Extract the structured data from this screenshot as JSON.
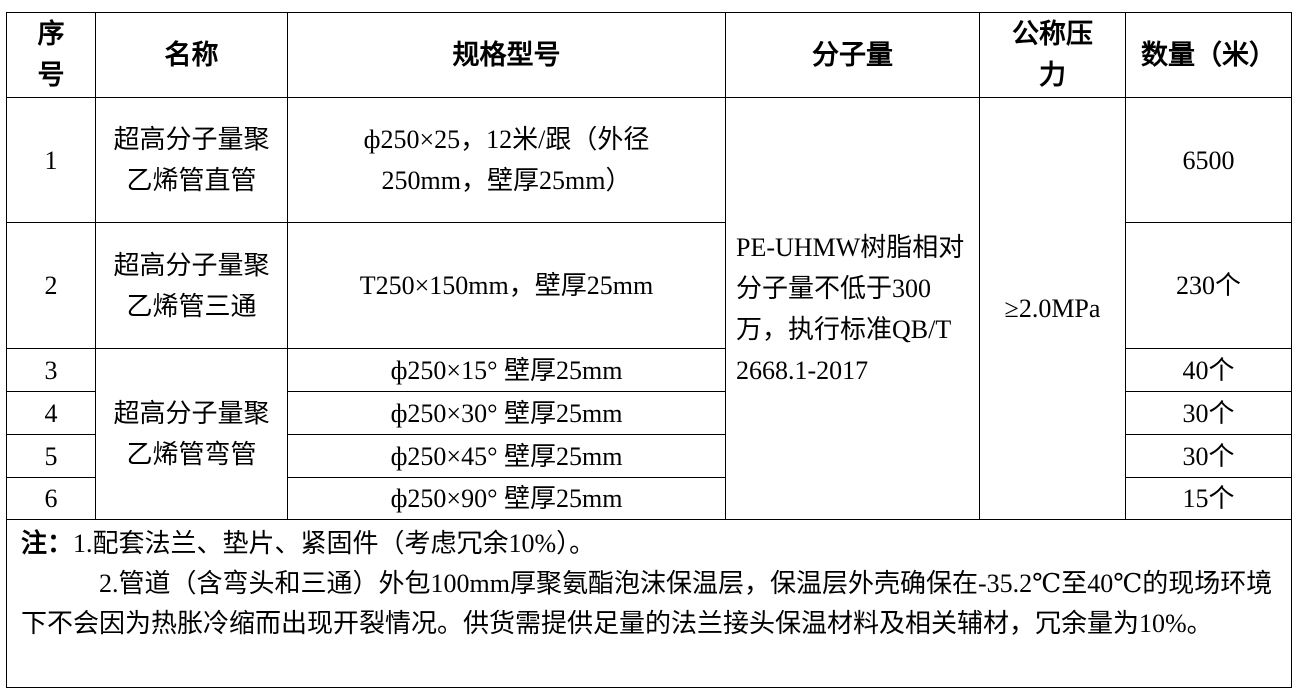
{
  "headers": [
    "序号",
    "名称",
    "规格型号",
    "分子量",
    "公称压力",
    "数量（米）"
  ],
  "rows": [
    {
      "no": "1",
      "spec": "ф250×25，12米/跟（外径250mm，壁厚25mm）",
      "qty": "6500"
    },
    {
      "no": "2",
      "spec": "T250×150mm，壁厚25mm",
      "qty": "230个"
    },
    {
      "no": "3",
      "spec": "ф250×15° 壁厚25mm",
      "qty": "40个"
    },
    {
      "no": "4",
      "spec": "ф250×30° 壁厚25mm",
      "qty": "30个"
    },
    {
      "no": "5",
      "spec": "ф250×45° 壁厚25mm",
      "qty": "30个"
    },
    {
      "no": "6",
      "spec": "ф250×90° 壁厚25mm",
      "qty": "15个"
    }
  ],
  "names": [
    "超高分子量聚乙烯管直管",
    "超高分子量聚乙烯管三通",
    "超高分子量聚乙烯管弯管"
  ],
  "molecular_weight": "PE-UHMW树脂相对分子量不低于300万，执行标准QB/T 2668.1-2017",
  "pressure": "≥2.0MPa",
  "notes": {
    "label": "注：",
    "item1": "1.配套法兰、垫片、紧固件（考虑冗余10%）。",
    "item2": "2.管道（含弯头和三通）外包100mm厚聚氨酯泡沫保温层，保温层外壳确保在-35.2℃至40℃的现场环境下不会因为热胀冷缩而出现开裂情况。供货需提供足量的法兰接头保温材料及相关辅材，冗余量为10%。"
  }
}
